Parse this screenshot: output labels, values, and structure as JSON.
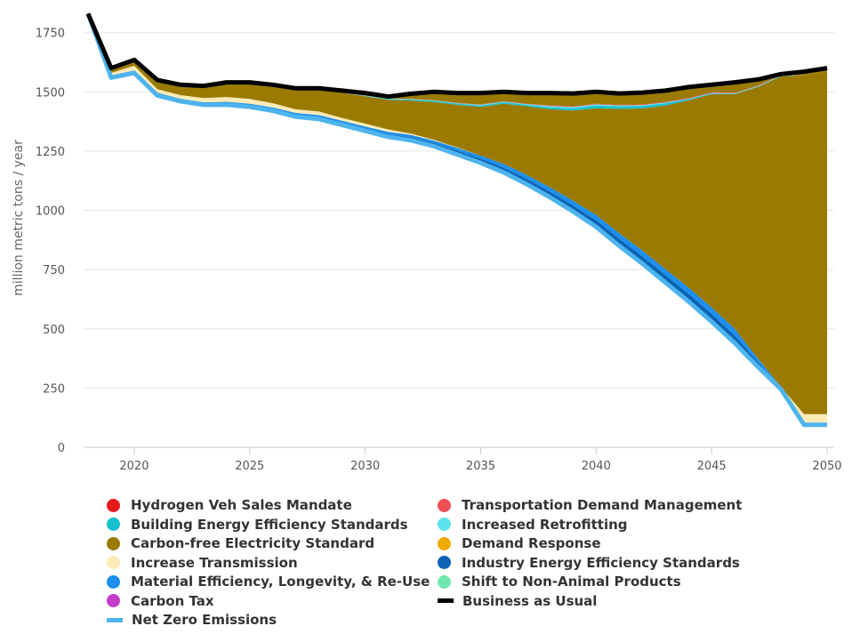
{
  "chart_data": {
    "type": "area",
    "title": "",
    "xlabel": "",
    "ylabel": "million metric tons / year",
    "xlim": [
      2018,
      2050
    ],
    "ylim": [
      0,
      1850
    ],
    "x_ticks": [
      "2020",
      "2025",
      "2030",
      "2035",
      "2040",
      "2045",
      "2050"
    ],
    "y_ticks": [
      "0",
      "250",
      "500",
      "750",
      "1000",
      "1250",
      "1500",
      "1750"
    ],
    "grid": "horizontal",
    "legend_position": "bottom",
    "years": [
      2018,
      2019,
      2020,
      2021,
      2022,
      2023,
      2024,
      2025,
      2026,
      2027,
      2028,
      2029,
      2030,
      2031,
      2032,
      2033,
      2034,
      2035,
      2036,
      2037,
      2038,
      2039,
      2040,
      2041,
      2042,
      2043,
      2044,
      2045,
      2046,
      2047,
      2048,
      2049,
      2050
    ],
    "business_as_usual": [
      1830,
      1600,
      1635,
      1550,
      1530,
      1525,
      1540,
      1540,
      1530,
      1515,
      1515,
      1505,
      1495,
      1480,
      1492,
      1500,
      1495,
      1495,
      1500,
      1495,
      1495,
      1493,
      1500,
      1493,
      1497,
      1505,
      1520,
      1530,
      1540,
      1552,
      1575,
      1585,
      1600
    ],
    "net_zero_emissions": [
      1830,
      1560,
      1580,
      1485,
      1460,
      1445,
      1445,
      1437,
      1420,
      1395,
      1385,
      1360,
      1335,
      1310,
      1295,
      1270,
      1235,
      1200,
      1160,
      1110,
      1055,
      995,
      930,
      850,
      775,
      695,
      615,
      530,
      440,
      340,
      245,
      95,
      95
    ],
    "stack_order": [
      "Industry Energy Efficiency Standards",
      "Material Efficiency, Longevity, & Re-Use",
      "Increase Transmission",
      "Carbon-free Electricity Standard",
      "Building Energy Efficiency Standards",
      "Increased Retrofitting",
      "Transportation Demand Management"
    ],
    "series_values": {
      "Material Efficiency, Longevity, & Re-Use": [
        0,
        5,
        5,
        5,
        5,
        5,
        6,
        6,
        6,
        7,
        7,
        8,
        8,
        9,
        10,
        10,
        12,
        13,
        15,
        17,
        18,
        20,
        22,
        23,
        24,
        25,
        26,
        27,
        28,
        15,
        5,
        0,
        0
      ],
      "Industry Energy Efficiency Standards": [
        0,
        5,
        5,
        6,
        6,
        6,
        7,
        7,
        8,
        9,
        10,
        10,
        11,
        12,
        13,
        14,
        16,
        18,
        20,
        22,
        24,
        26,
        28,
        30,
        31,
        32,
        33,
        33,
        32,
        20,
        5,
        0,
        0
      ],
      "Increase Transmission": [
        0,
        10,
        20,
        15,
        15,
        18,
        20,
        20,
        18,
        15,
        15,
        12,
        12,
        10,
        5,
        3,
        2,
        0,
        0,
        0,
        0,
        0,
        0,
        0,
        0,
        0,
        0,
        0,
        0,
        0,
        0,
        45,
        45
      ],
      "Carbon-free Electricity Standard": [
        0,
        12,
        25,
        40,
        50,
        50,
        60,
        70,
        80,
        90,
        95,
        105,
        115,
        125,
        140,
        160,
        180,
        205,
        255,
        290,
        330,
        380,
        450,
        525,
        600,
        690,
        790,
        900,
        990,
        1145,
        1310,
        1430,
        1445
      ],
      "Building Energy Efficiency Standards": [
        0,
        0,
        0,
        0,
        0,
        0,
        0,
        0,
        0,
        0,
        0,
        0,
        2,
        3,
        4,
        5,
        5,
        6,
        6,
        6,
        8,
        10,
        12,
        10,
        10,
        10,
        5,
        3,
        2,
        2,
        2,
        0,
        0
      ],
      "Increased Retrofitting": [
        0,
        0,
        0,
        0,
        0,
        0,
        0,
        0,
        0,
        0,
        0,
        0,
        1,
        2,
        2,
        2,
        2,
        3,
        3,
        3,
        5,
        5,
        5,
        5,
        4,
        3,
        2,
        2,
        2,
        2,
        2,
        0,
        0
      ],
      "Transportation Demand Management": [
        0,
        0,
        0,
        0,
        0,
        0,
        0,
        0,
        0,
        0,
        0,
        0,
        1,
        1,
        1,
        1,
        1,
        2,
        2,
        2,
        3,
        3,
        3,
        3,
        3,
        3,
        3,
        3,
        2,
        2,
        2,
        0,
        0
      ]
    },
    "series": [
      {
        "name": "Hydrogen Veh Sales Mandate",
        "color": "#e8191c",
        "marker": "dot"
      },
      {
        "name": "Transportation Demand Management",
        "color": "#f14d55",
        "marker": "dot"
      },
      {
        "name": "Building Energy Efficiency Standards",
        "color": "#16c0cf",
        "marker": "dot"
      },
      {
        "name": "Increased Retrofitting",
        "color": "#5ce4ee",
        "marker": "dot"
      },
      {
        "name": "Carbon-free Electricity Standard",
        "color": "#9a7a00",
        "marker": "dot"
      },
      {
        "name": "Demand Response",
        "color": "#eeaa00",
        "marker": "dot"
      },
      {
        "name": "Increase Transmission",
        "color": "#fdebb6",
        "marker": "dot"
      },
      {
        "name": "Industry Energy Efficiency Standards",
        "color": "#0b63b3",
        "marker": "dot"
      },
      {
        "name": "Material Efficiency, Longevity, & Re-Use",
        "color": "#1c8ff0",
        "marker": "dot"
      },
      {
        "name": "Shift to Non-Animal Products",
        "color": "#71e8af",
        "marker": "dot"
      },
      {
        "name": "Carbon Tax",
        "color": "#c33ccc",
        "marker": "dot"
      },
      {
        "name": "Business as Usual",
        "color": "#000000",
        "marker": "line"
      },
      {
        "name": "Net Zero Emissions",
        "color": "#4db4ee",
        "marker": "line"
      }
    ]
  }
}
